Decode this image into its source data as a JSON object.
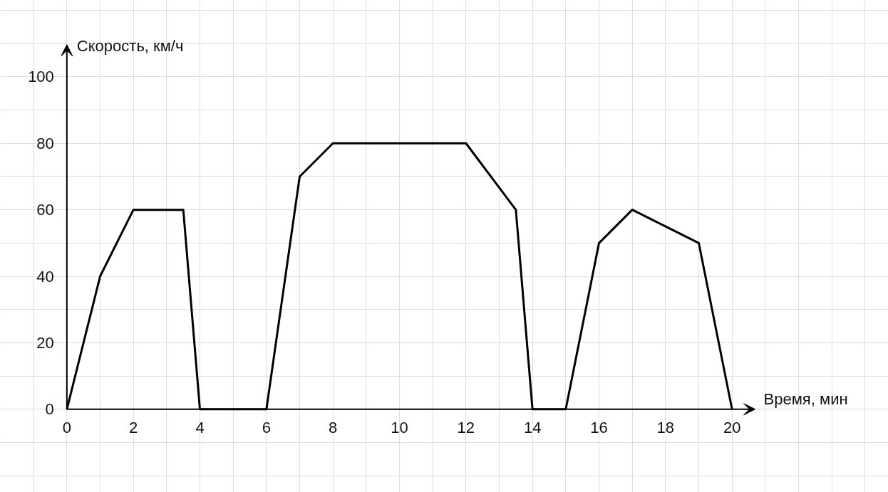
{
  "chart_data": {
    "type": "line",
    "xlabel": "Время, мин",
    "ylabel": "Скорость, км/ч",
    "x": [
      0,
      1,
      2,
      3.5,
      4,
      6,
      7,
      8,
      12,
      13.5,
      14,
      15,
      16,
      17,
      19,
      20
    ],
    "series": [
      {
        "color": "#000000",
        "values": [
          0,
          40,
          60,
          60,
          0,
          0,
          70,
          80,
          80,
          60,
          0,
          0,
          50,
          60,
          50,
          0
        ]
      }
    ],
    "xlim": [
      -2,
      24.7
    ],
    "ylim": [
      -25,
      123
    ],
    "xticks": [
      {
        "value": -2,
        "label": null
      },
      {
        "value": -1,
        "label": null
      },
      0,
      {
        "value": 1,
        "label": null
      },
      2,
      {
        "value": 3,
        "label": null
      },
      4,
      {
        "value": 5,
        "label": null
      },
      6,
      {
        "value": 7,
        "label": null
      },
      8,
      {
        "value": 9,
        "label": null
      },
      10,
      {
        "value": 11,
        "label": null
      },
      12,
      {
        "value": 13,
        "label": null
      },
      14,
      {
        "value": 15,
        "label": null
      },
      16,
      {
        "value": 17,
        "label": null
      },
      18,
      {
        "value": 19,
        "label": null
      },
      20,
      {
        "value": 21,
        "label": null
      },
      {
        "value": 22,
        "label": null
      },
      {
        "value": 23,
        "label": null
      },
      {
        "value": 24,
        "label": null
      }
    ],
    "yticks": [
      {
        "value": -20,
        "label": null
      },
      {
        "value": -10,
        "label": null
      },
      0,
      {
        "value": 10,
        "label": null
      },
      20,
      {
        "value": 30,
        "label": null
      },
      40,
      {
        "value": 50,
        "label": null
      },
      60,
      {
        "value": 70,
        "label": null
      },
      80,
      {
        "value": 90,
        "label": null
      },
      100,
      {
        "value": 110,
        "label": null
      },
      {
        "value": 120,
        "label": null
      }
    ],
    "grid": true,
    "marker": "none",
    "line_style": "solid"
  }
}
